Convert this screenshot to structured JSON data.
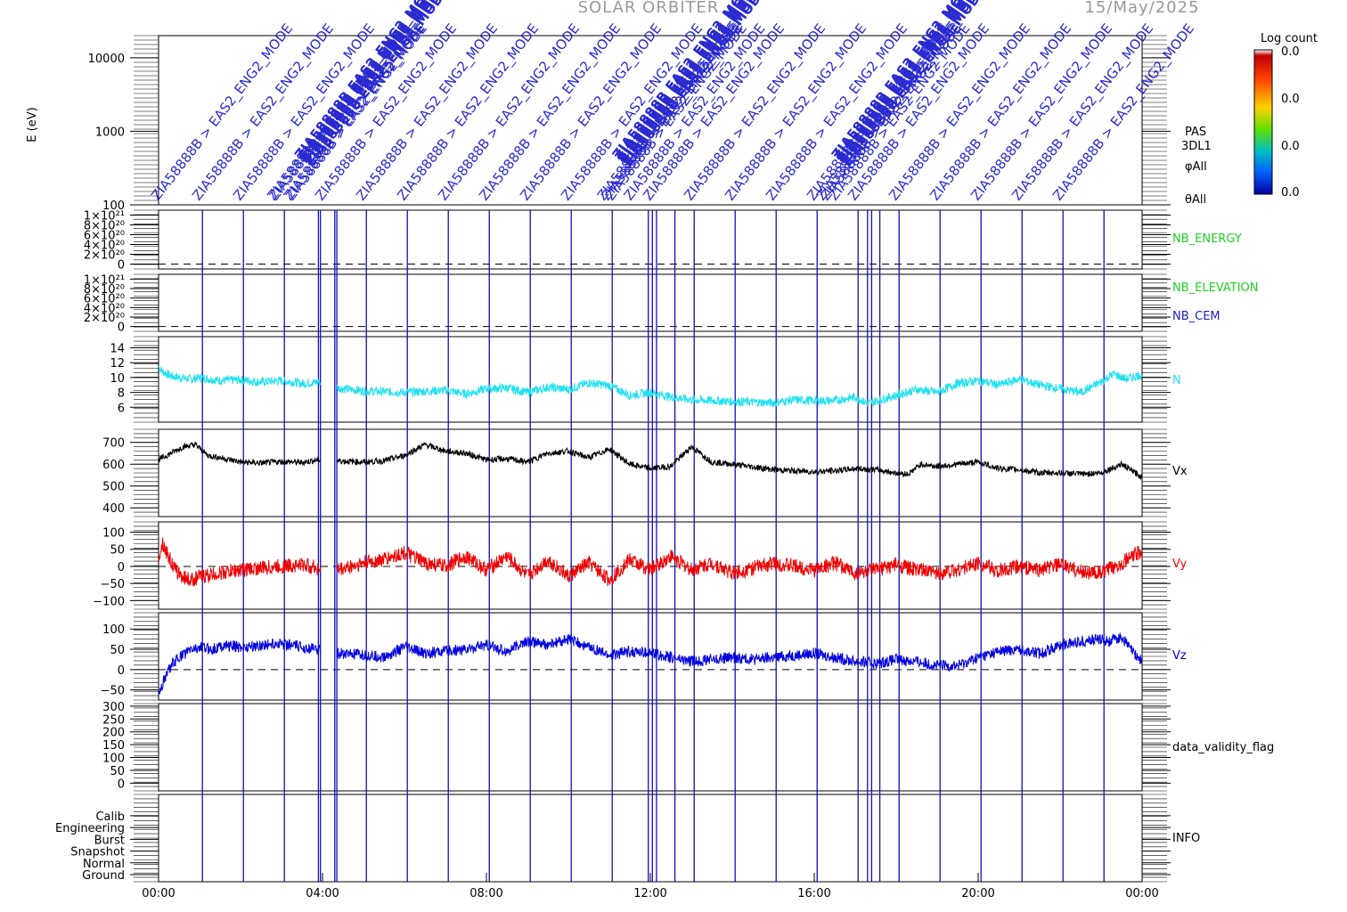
{
  "header": {
    "mission": "SOLAR ORBITER",
    "date": "15/May/2025"
  },
  "colorbar": {
    "title": "Log count",
    "ticks": [
      "0.0",
      "0.0",
      "0.0",
      "0.0"
    ],
    "gradient": [
      "#ffffff",
      "#c00000",
      "#ff4000",
      "#ffd000",
      "#60e000",
      "#00c0c0",
      "#0060ff",
      "#0000a0"
    ]
  },
  "right_labels": {
    "spectrogram": [
      "PAS",
      "3DL1",
      "φAll",
      "θAll"
    ],
    "nb_energy": "NB_ENERGY",
    "nb_elevation": "NB_ELEVATION",
    "nb_cem": "NB_CEM",
    "n": "N",
    "vx": "Vx",
    "vy": "Vy",
    "vz": "Vz",
    "validity": "data_validity_flag",
    "info": "INFO"
  },
  "colors": {
    "event_lines": "#1010c0",
    "annotation": "#2a2ad0",
    "nb_energy": "#20d020",
    "nb_elevation": "#20d020",
    "nb_cem": "#2020c0",
    "n": "#20e0f0",
    "vx": "#000000",
    "vy": "#ee0000",
    "vz": "#0000dd"
  },
  "annotations": {
    "left_text": "ZIA58888B > EAS2_ENG2_MODE",
    "dense_text": "ZIA58888B EAS2_ENG2_MODE"
  },
  "chart_data": {
    "type": "line",
    "x_range_hours": [
      0,
      24
    ],
    "x_tick_labels": [
      "00:00",
      "04:00",
      "08:00",
      "12:00",
      "16:00",
      "20:00",
      "00:00"
    ],
    "event_times_hours": [
      1.07,
      2.07,
      3.07,
      3.9,
      3.95,
      4.3,
      4.35,
      5.07,
      6.07,
      7.07,
      8.07,
      9.07,
      10.07,
      11.07,
      11.95,
      12.05,
      12.15,
      12.6,
      13.07,
      14.07,
      15.07,
      16.07,
      17.07,
      17.3,
      17.4,
      17.6,
      18.07,
      19.07,
      20.07,
      21.07,
      22.07,
      23.07
    ],
    "panels": [
      {
        "key": "spectrogram",
        "ylabel": "E (eV)",
        "scale": "log",
        "y_range": [
          100,
          20000
        ],
        "tick_labels": [
          "100",
          "1000",
          "10000"
        ],
        "tick_values": [
          100,
          1000,
          10000
        ]
      },
      {
        "key": "nb_energy",
        "tick_labels": [
          "0",
          "2×10²⁰",
          "4×10²⁰",
          "6×10²⁰",
          "8×10²⁰",
          "1×10²¹"
        ],
        "tick_values": [
          0,
          2e+20,
          4e+20,
          6e+20,
          8e+20,
          1e+21
        ],
        "y_range": [
          -1e+20,
          1.1e+21
        ],
        "dashed_at": 0
      },
      {
        "key": "nb_elevation",
        "tick_labels": [
          "0",
          "2×10²⁰",
          "4×10²⁰",
          "6×10²⁰",
          "8×10²⁰",
          "1×10²¹"
        ],
        "tick_values": [
          0,
          2e+20,
          4e+20,
          6e+20,
          8e+20,
          1e+21
        ],
        "y_range": [
          -1e+20,
          1.1e+21
        ],
        "dashed_at": 0
      },
      {
        "key": "n",
        "tick_labels": [
          "6",
          "8",
          "10",
          "12",
          "14"
        ],
        "tick_values": [
          6,
          8,
          10,
          12,
          14
        ],
        "y_range": [
          4,
          15.5
        ]
      },
      {
        "key": "vx",
        "tick_labels": [
          "400",
          "500",
          "600",
          "700"
        ],
        "tick_values": [
          400,
          500,
          600,
          700
        ],
        "y_range": [
          360,
          760
        ]
      },
      {
        "key": "vy",
        "tick_labels": [
          "−100",
          "−50",
          "0",
          "50",
          "100"
        ],
        "tick_values": [
          -100,
          -50,
          0,
          50,
          100
        ],
        "y_range": [
          -125,
          130
        ],
        "dashed_at": 0
      },
      {
        "key": "vz",
        "tick_labels": [
          "−50",
          "0",
          "50",
          "100"
        ],
        "tick_values": [
          -50,
          0,
          50,
          100
        ],
        "y_range": [
          -75,
          140
        ],
        "dashed_at": 0
      },
      {
        "key": "validity",
        "tick_labels": [
          "0",
          "50",
          "100",
          "150",
          "200",
          "250",
          "300"
        ],
        "tick_values": [
          0,
          50,
          100,
          150,
          200,
          250,
          300
        ],
        "y_range": [
          -30,
          310
        ]
      },
      {
        "key": "info",
        "tick_labels": [
          "Ground",
          "Normal",
          "Snapshot",
          "Burst",
          "Engineering",
          "Calib"
        ],
        "tick_values": [
          0,
          1,
          2,
          3,
          4,
          5
        ],
        "y_range": [
          -0.6,
          6.8
        ]
      }
    ],
    "series": [
      {
        "name": "N",
        "panel": "n",
        "gap_hours": [
          3.95,
          4.35
        ],
        "x": [
          0,
          0.1,
          0.3,
          0.5,
          0.8,
          1.0,
          1.5,
          2.0,
          2.5,
          3.0,
          3.5,
          3.9,
          4.4,
          5.0,
          6.0,
          7.0,
          7.5,
          8.0,
          8.5,
          9.0,
          9.5,
          10.0,
          10.5,
          11.0,
          11.5,
          12.0,
          12.5,
          13.0,
          13.5,
          14.0,
          15.0,
          15.5,
          16.0,
          16.5,
          17.0,
          17.3,
          17.6,
          18.0,
          18.5,
          19.0,
          19.5,
          20.0,
          20.5,
          21.0,
          21.5,
          22.0,
          22.5,
          23.0,
          23.3,
          23.6,
          24.0
        ],
        "y": [
          11.5,
          10.8,
          10.2,
          10.0,
          9.8,
          10.0,
          9.6,
          9.7,
          9.4,
          9.6,
          9.2,
          9.4,
          8.6,
          8.2,
          8.0,
          8.3,
          7.8,
          8.5,
          8.6,
          8.0,
          8.7,
          8.4,
          9.3,
          8.9,
          7.6,
          8.0,
          7.4,
          7.0,
          6.9,
          6.8,
          6.6,
          7.0,
          6.9,
          6.9,
          7.4,
          6.5,
          7.0,
          7.6,
          8.4,
          8.0,
          9.2,
          9.6,
          9.0,
          9.8,
          9.0,
          8.5,
          8.0,
          9.4,
          10.5,
          9.8,
          10.4
        ]
      },
      {
        "name": "Vx",
        "panel": "vx",
        "gap_hours": [
          3.95,
          4.35
        ],
        "x": [
          0,
          0.3,
          0.6,
          0.9,
          1.2,
          1.5,
          2.0,
          2.5,
          3.0,
          3.5,
          3.9,
          4.4,
          5.0,
          5.5,
          6.0,
          6.5,
          7.0,
          7.5,
          8.0,
          8.5,
          9.0,
          9.5,
          10.0,
          10.5,
          11.0,
          11.5,
          12.0,
          12.5,
          13.0,
          13.5,
          14.0,
          15.0,
          15.5,
          16.0,
          16.5,
          17.0,
          17.5,
          18.0,
          18.3,
          18.6,
          19.0,
          19.5,
          20.0,
          20.5,
          21.0,
          21.5,
          22.0,
          22.5,
          23.0,
          23.5,
          24.0
        ],
        "y": [
          620,
          650,
          680,
          690,
          640,
          630,
          610,
          605,
          612,
          608,
          620,
          615,
          610,
          615,
          640,
          690,
          660,
          650,
          620,
          625,
          610,
          650,
          660,
          630,
          670,
          600,
          580,
          590,
          680,
          610,
          600,
          575,
          570,
          565,
          570,
          580,
          575,
          560,
          555,
          600,
          590,
          600,
          610,
          580,
          575,
          560,
          560,
          555,
          560,
          600,
          540
        ]
      },
      {
        "name": "Vy",
        "panel": "vy",
        "gap_hours": [
          3.95,
          4.35
        ],
        "x": [
          0,
          0.1,
          0.2,
          0.4,
          0.6,
          0.8,
          1.0,
          1.5,
          2.0,
          2.5,
          3.0,
          3.5,
          3.9,
          4.4,
          5.0,
          5.5,
          6.0,
          6.5,
          7.0,
          7.5,
          8.0,
          8.5,
          9.0,
          9.5,
          10.0,
          10.5,
          11.0,
          11.5,
          12.0,
          12.5,
          13.0,
          13.5,
          14.0,
          14.5,
          15.0,
          15.5,
          16.0,
          16.5,
          17.0,
          17.5,
          18.0,
          18.5,
          19.0,
          19.5,
          20.0,
          20.5,
          21.0,
          21.5,
          22.0,
          22.5,
          23.0,
          23.5,
          24.0
        ],
        "y": [
          30,
          70,
          40,
          -10,
          -30,
          -40,
          -30,
          -20,
          -10,
          -5,
          0,
          5,
          -5,
          -10,
          10,
          20,
          40,
          10,
          0,
          30,
          -10,
          30,
          -30,
          20,
          -30,
          10,
          -40,
          20,
          -10,
          30,
          -10,
          10,
          -20,
          -5,
          10,
          0,
          -10,
          10,
          -20,
          -10,
          5,
          -10,
          -20,
          -10,
          10,
          -15,
          0,
          -10,
          5,
          -15,
          -20,
          10,
          45
        ]
      },
      {
        "name": "Vz",
        "panel": "vz",
        "gap_hours": [
          3.95,
          4.35
        ],
        "x": [
          0,
          0.05,
          0.15,
          0.3,
          0.5,
          0.8,
          1.0,
          1.3,
          1.6,
          2.0,
          2.5,
          3.0,
          3.5,
          3.9,
          4.4,
          5.0,
          5.5,
          6.0,
          6.5,
          7.0,
          7.5,
          8.0,
          8.5,
          9.0,
          9.5,
          10.0,
          10.5,
          11.0,
          11.5,
          12.0,
          12.5,
          13.0,
          13.5,
          14.0,
          14.5,
          15.0,
          15.5,
          16.0,
          16.5,
          17.0,
          17.5,
          18.0,
          18.5,
          19.0,
          19.5,
          20.0,
          20.5,
          21.0,
          21.5,
          22.0,
          22.5,
          23.0,
          23.2,
          23.5,
          23.8,
          24.0
        ],
        "y": [
          -55,
          -50,
          -20,
          10,
          30,
          50,
          55,
          50,
          60,
          55,
          60,
          65,
          55,
          50,
          40,
          35,
          30,
          55,
          40,
          45,
          50,
          60,
          45,
          70,
          60,
          75,
          55,
          35,
          45,
          40,
          30,
          20,
          25,
          30,
          25,
          30,
          35,
          40,
          30,
          20,
          15,
          25,
          20,
          10,
          10,
          30,
          45,
          50,
          40,
          60,
          70,
          75,
          70,
          80,
          40,
          20
        ]
      }
    ]
  }
}
